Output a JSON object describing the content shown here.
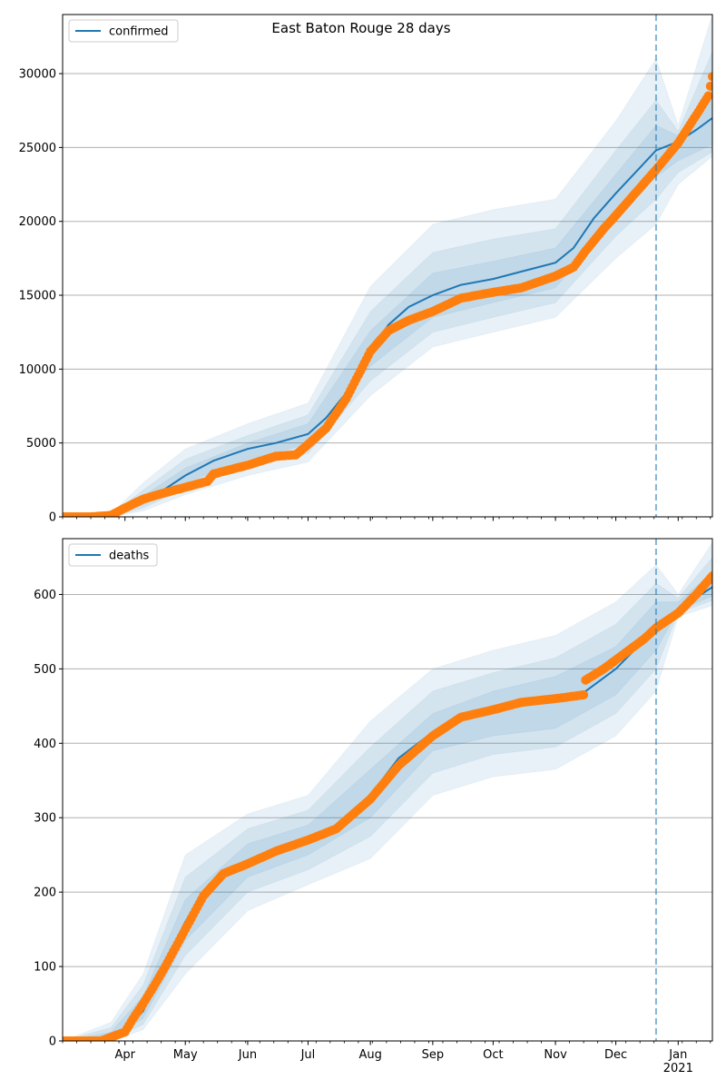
{
  "figure": {
    "title": "East Baton Rouge 28 days"
  },
  "colors": {
    "model": "#1f77b4",
    "observed": "#ff7f0e",
    "band": "#1f77b4",
    "grid": "#b0b0b0",
    "forecast_marker": "#1f77b4"
  },
  "chart_data": [
    {
      "type": "line",
      "title": "East Baton Rouge 28 days",
      "legend": [
        "confirmed"
      ],
      "legend_position": "top-left",
      "grid": "horizontal",
      "x_range": [
        "2020-03-01",
        "2021-01-18"
      ],
      "ylim": [
        0,
        34000
      ],
      "yticks": [
        0,
        5000,
        10000,
        15000,
        20000,
        25000,
        30000
      ],
      "forecast_start": "2020-12-21",
      "month_ticks": [
        {
          "date": "2020-04-01",
          "label": "Apr"
        },
        {
          "date": "2020-05-01",
          "label": "May"
        },
        {
          "date": "2020-06-01",
          "label": "Jun"
        },
        {
          "date": "2020-07-01",
          "label": "Jul"
        },
        {
          "date": "2020-08-01",
          "label": "Aug"
        },
        {
          "date": "2020-09-01",
          "label": "Sep"
        },
        {
          "date": "2020-10-01",
          "label": "Oct"
        },
        {
          "date": "2020-11-01",
          "label": "Nov"
        },
        {
          "date": "2020-12-01",
          "label": "Dec"
        },
        {
          "date": "2021-01-01",
          "label": "Jan\n2021"
        }
      ],
      "series": [
        {
          "name": "confirmed",
          "kind": "model",
          "x": [
            "2020-03-01",
            "2020-03-15",
            "2020-03-25",
            "2020-04-01",
            "2020-04-10",
            "2020-04-20",
            "2020-05-01",
            "2020-05-15",
            "2020-06-01",
            "2020-06-15",
            "2020-07-01",
            "2020-07-10",
            "2020-07-20",
            "2020-08-01",
            "2020-08-10",
            "2020-08-20",
            "2020-09-01",
            "2020-09-15",
            "2020-10-01",
            "2020-10-15",
            "2020-11-01",
            "2020-11-10",
            "2020-11-20",
            "2020-12-01",
            "2020-12-10",
            "2020-12-21",
            "2021-01-01",
            "2021-01-10",
            "2021-01-18"
          ],
          "y": [
            0,
            0,
            50,
            400,
            1100,
            1800,
            2800,
            3800,
            4600,
            5000,
            5600,
            6700,
            8400,
            11200,
            13000,
            14200,
            15000,
            15700,
            16100,
            16600,
            17200,
            18200,
            20200,
            21900,
            23200,
            24800,
            25400,
            26200,
            27000
          ]
        },
        {
          "name": "observed confirmed",
          "kind": "observed",
          "x": [
            "2020-03-01",
            "2020-03-15",
            "2020-03-25",
            "2020-04-01",
            "2020-04-10",
            "2020-04-20",
            "2020-05-01",
            "2020-05-12",
            "2020-05-15",
            "2020-06-01",
            "2020-06-15",
            "2020-06-25",
            "2020-07-01",
            "2020-07-10",
            "2020-07-20",
            "2020-08-01",
            "2020-08-10",
            "2020-08-20",
            "2020-09-01",
            "2020-09-15",
            "2020-10-01",
            "2020-10-15",
            "2020-11-01",
            "2020-11-10",
            "2020-11-16",
            "2020-11-25",
            "2020-12-01",
            "2020-12-10",
            "2020-12-21",
            "2021-01-01",
            "2021-01-10",
            "2021-01-16",
            "2021-01-18"
          ],
          "y": [
            0,
            0,
            100,
            600,
            1200,
            1600,
            2000,
            2400,
            2900,
            3500,
            4100,
            4200,
            4900,
            6000,
            8000,
            11200,
            12600,
            13300,
            13900,
            14800,
            15200,
            15500,
            16300,
            16900,
            18000,
            19500,
            20400,
            21800,
            23500,
            25300,
            27200,
            28500,
            29800
          ]
        }
      ],
      "bands": [
        {
          "x": [
            "2020-03-01",
            "2020-03-25",
            "2020-04-10",
            "2020-05-01",
            "2020-06-01",
            "2020-07-01",
            "2020-08-01",
            "2020-09-01",
            "2020-10-01",
            "2020-11-01",
            "2020-12-01",
            "2020-12-21",
            "2021-01-01",
            "2021-01-18"
          ],
          "low": [
            0,
            0,
            400,
            1500,
            2800,
            3700,
            8200,
            11500,
            12500,
            13500,
            17500,
            19800,
            22500,
            24400
          ],
          "high": [
            0,
            200,
            2300,
            4600,
            6300,
            7700,
            15600,
            19800,
            20800,
            21500,
            26800,
            31000,
            26500,
            34000
          ]
        },
        {
          "x": [
            "2020-03-01",
            "2020-03-25",
            "2020-04-10",
            "2020-05-01",
            "2020-06-01",
            "2020-07-01",
            "2020-08-01",
            "2020-09-01",
            "2020-10-01",
            "2020-11-01",
            "2020-12-01",
            "2020-12-21",
            "2021-01-01",
            "2021-01-18"
          ],
          "low": [
            0,
            0,
            600,
            1900,
            3400,
            4300,
            9200,
            12500,
            13500,
            14500,
            19000,
            21500,
            23300,
            24700
          ],
          "high": [
            0,
            150,
            1800,
            3900,
            5500,
            6900,
            13900,
            17900,
            18800,
            19500,
            24800,
            28200,
            26100,
            31500
          ]
        },
        {
          "x": [
            "2020-03-01",
            "2020-03-25",
            "2020-04-10",
            "2020-05-01",
            "2020-06-01",
            "2020-07-01",
            "2020-08-01",
            "2020-09-01",
            "2020-10-01",
            "2020-11-01",
            "2020-12-01",
            "2020-12-21",
            "2021-01-01",
            "2021-01-18"
          ],
          "low": [
            0,
            10,
            800,
            2300,
            3900,
            4900,
            10200,
            13500,
            14500,
            15500,
            20300,
            23000,
            24100,
            25200
          ],
          "high": [
            0,
            100,
            1400,
            3300,
            5000,
            6300,
            12600,
            16500,
            17300,
            18200,
            23200,
            26500,
            25800,
            29000
          ]
        }
      ]
    },
    {
      "type": "line",
      "legend": [
        "deaths"
      ],
      "legend_position": "top-left",
      "grid": "horizontal",
      "x_range": [
        "2020-03-01",
        "2021-01-18"
      ],
      "ylim": [
        0,
        675
      ],
      "yticks": [
        0,
        100,
        200,
        300,
        400,
        500,
        600
      ],
      "forecast_start": "2020-12-21",
      "month_ticks": [
        {
          "date": "2020-04-01",
          "label": "Apr"
        },
        {
          "date": "2020-05-01",
          "label": "May"
        },
        {
          "date": "2020-06-01",
          "label": "Jun"
        },
        {
          "date": "2020-07-01",
          "label": "Jul"
        },
        {
          "date": "2020-08-01",
          "label": "Aug"
        },
        {
          "date": "2020-09-01",
          "label": "Sep"
        },
        {
          "date": "2020-10-01",
          "label": "Oct"
        },
        {
          "date": "2020-11-01",
          "label": "Nov"
        },
        {
          "date": "2020-12-01",
          "label": "Dec"
        },
        {
          "date": "2021-01-01",
          "label": "Jan\n2021"
        }
      ],
      "series": [
        {
          "name": "deaths",
          "kind": "model",
          "x": [
            "2020-03-01",
            "2020-03-20",
            "2020-04-01",
            "2020-04-10",
            "2020-04-20",
            "2020-05-01",
            "2020-05-10",
            "2020-05-20",
            "2020-06-01",
            "2020-06-15",
            "2020-07-01",
            "2020-07-15",
            "2020-08-01",
            "2020-08-15",
            "2020-09-01",
            "2020-09-15",
            "2020-10-01",
            "2020-10-15",
            "2020-11-01",
            "2020-11-15",
            "2020-12-01",
            "2020-12-21",
            "2021-01-01",
            "2021-01-18"
          ],
          "y": [
            0,
            2,
            15,
            40,
            100,
            160,
            200,
            225,
            240,
            252,
            268,
            285,
            330,
            380,
            415,
            432,
            442,
            450,
            458,
            468,
            500,
            555,
            580,
            610
          ]
        },
        {
          "name": "observed deaths",
          "kind": "observed",
          "x": [
            "2020-03-01",
            "2020-03-20",
            "2020-04-01",
            "2020-04-05",
            "2020-04-10",
            "2020-04-15",
            "2020-04-20",
            "2020-04-25",
            "2020-05-01",
            "2020-05-10",
            "2020-05-20",
            "2020-06-01",
            "2020-06-15",
            "2020-07-01",
            "2020-07-15",
            "2020-08-01",
            "2020-08-15",
            "2020-09-01",
            "2020-09-15",
            "2020-10-01",
            "2020-10-15",
            "2020-11-01",
            "2020-11-15",
            "2020-11-16",
            "2020-11-25",
            "2020-12-05",
            "2020-12-15",
            "2020-12-21",
            "2021-01-01",
            "2021-01-10",
            "2021-01-18"
          ],
          "y": [
            0,
            0,
            12,
            30,
            50,
            72,
            95,
            120,
            150,
            195,
            225,
            238,
            255,
            270,
            285,
            325,
            370,
            410,
            435,
            445,
            455,
            460,
            465,
            485,
            500,
            520,
            540,
            555,
            575,
            600,
            625
          ]
        }
      ],
      "bands": [
        {
          "x": [
            "2020-03-01",
            "2020-03-25",
            "2020-04-10",
            "2020-05-01",
            "2020-06-01",
            "2020-07-01",
            "2020-08-01",
            "2020-09-01",
            "2020-10-01",
            "2020-11-01",
            "2020-12-01",
            "2020-12-21",
            "2021-01-01",
            "2021-01-18"
          ],
          "low": [
            0,
            0,
            15,
            90,
            175,
            210,
            245,
            330,
            355,
            365,
            410,
            470,
            570,
            585
          ],
          "high": [
            0,
            25,
            90,
            250,
            305,
            330,
            430,
            500,
            525,
            545,
            590,
            640,
            600,
            670
          ]
        },
        {
          "x": [
            "2020-03-01",
            "2020-03-25",
            "2020-04-10",
            "2020-05-01",
            "2020-06-01",
            "2020-07-01",
            "2020-08-01",
            "2020-09-01",
            "2020-10-01",
            "2020-11-01",
            "2020-12-01",
            "2020-12-21",
            "2021-01-01",
            "2021-01-18"
          ],
          "low": [
            0,
            2,
            22,
            115,
            200,
            230,
            275,
            360,
            385,
            395,
            440,
            500,
            575,
            592
          ],
          "high": [
            0,
            18,
            75,
            220,
            285,
            310,
            395,
            470,
            495,
            515,
            560,
            615,
            595,
            650
          ]
        },
        {
          "x": [
            "2020-03-01",
            "2020-03-25",
            "2020-04-10",
            "2020-05-01",
            "2020-06-01",
            "2020-07-01",
            "2020-08-01",
            "2020-09-01",
            "2020-10-01",
            "2020-11-01",
            "2020-12-01",
            "2020-12-21",
            "2021-01-01",
            "2021-01-18"
          ],
          "low": [
            0,
            4,
            30,
            135,
            220,
            250,
            300,
            390,
            410,
            420,
            465,
            525,
            578,
            598
          ],
          "high": [
            0,
            12,
            60,
            190,
            265,
            290,
            365,
            440,
            470,
            490,
            530,
            590,
            590,
            630
          ]
        }
      ]
    }
  ]
}
